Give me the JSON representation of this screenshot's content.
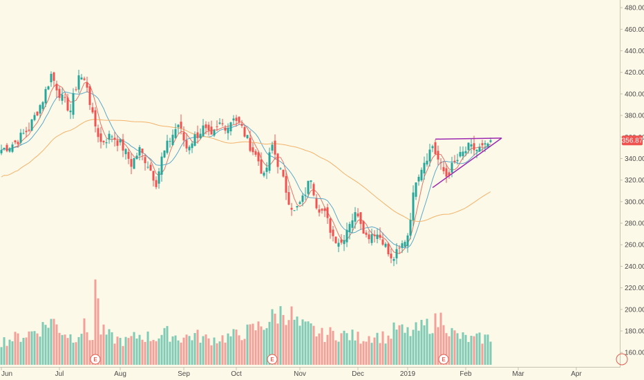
{
  "colors": {
    "background": "#fdf9e8",
    "up": "#26a69a",
    "down": "#ef5350",
    "up_volume": "#7fcbb6",
    "down_volume": "#f2a098",
    "ma_fast": "#e57368",
    "ma_mid": "#5aa8c8",
    "ma_slow": "#f2b26a",
    "trendline": "#9c27b0",
    "axis_line": "#c8c3b0",
    "earnings_marker": "#e25c4e"
  },
  "price_badge": {
    "value": "356.87"
  },
  "earnings_marker": {
    "label": "E"
  },
  "chart_data": {
    "type": "candlestick",
    "y_axis": {
      "ticks": [
        "160.00",
        "180.00",
        "200.00",
        "220.00",
        "240.00",
        "260.00",
        "280.00",
        "300.00",
        "320.00",
        "340.00",
        "360.00",
        "380.00",
        "400.00",
        "420.00",
        "440.00",
        "460.00",
        "480.00"
      ],
      "ylim": [
        155,
        482
      ]
    },
    "x_axis": {
      "labels": [
        {
          "label": "Jun",
          "index": 0
        },
        {
          "label": "Jul",
          "index": 21
        },
        {
          "label": "Aug",
          "index": 43
        },
        {
          "label": "Sep",
          "index": 66
        },
        {
          "label": "Oct",
          "index": 85
        },
        {
          "label": "Nov",
          "index": 108
        },
        {
          "label": "Dec",
          "index": 129
        },
        {
          "label": "2019",
          "index": 147
        },
        {
          "label": "Feb",
          "index": 168
        },
        {
          "label": "Mar",
          "index": 187
        },
        {
          "label": "Apr",
          "index": 208
        }
      ],
      "total_slots": 232
    },
    "price_anchors": [
      [
        0,
        348
      ],
      [
        5,
        355
      ],
      [
        10,
        368
      ],
      [
        15,
        395
      ],
      [
        18,
        418
      ],
      [
        22,
        395
      ],
      [
        25,
        385
      ],
      [
        28,
        418
      ],
      [
        31,
        408
      ],
      [
        33,
        378
      ],
      [
        36,
        355
      ],
      [
        40,
        362
      ],
      [
        44,
        350
      ],
      [
        47,
        335
      ],
      [
        50,
        348
      ],
      [
        53,
        335
      ],
      [
        56,
        318
      ],
      [
        58,
        340
      ],
      [
        61,
        358
      ],
      [
        64,
        372
      ],
      [
        67,
        350
      ],
      [
        70,
        360
      ],
      [
        73,
        368
      ],
      [
        76,
        358
      ],
      [
        79,
        372
      ],
      [
        82,
        370
      ],
      [
        84,
        380
      ],
      [
        87,
        368
      ],
      [
        90,
        352
      ],
      [
        93,
        338
      ],
      [
        95,
        322
      ],
      [
        98,
        352
      ],
      [
        101,
        328
      ],
      [
        104,
        302
      ],
      [
        106,
        290
      ],
      [
        109,
        302
      ],
      [
        112,
        323
      ],
      [
        114,
        298
      ],
      [
        117,
        288
      ],
      [
        120,
        268
      ],
      [
        123,
        262
      ],
      [
        126,
        282
      ],
      [
        129,
        290
      ],
      [
        132,
        268
      ],
      [
        135,
        272
      ],
      [
        138,
        265
      ],
      [
        141,
        245
      ],
      [
        144,
        255
      ],
      [
        147,
        270
      ],
      [
        150,
        322
      ],
      [
        153,
        338
      ],
      [
        156,
        352
      ],
      [
        159,
        332
      ],
      [
        161,
        324
      ],
      [
        163,
        332
      ],
      [
        166,
        342
      ],
      [
        169,
        350
      ],
      [
        172,
        348
      ],
      [
        175,
        350
      ],
      [
        177,
        356.87
      ]
    ],
    "volume_anchors": [
      [
        0,
        0.26
      ],
      [
        5,
        0.3
      ],
      [
        10,
        0.35
      ],
      [
        15,
        0.42
      ],
      [
        18,
        0.5
      ],
      [
        22,
        0.38
      ],
      [
        26,
        0.3
      ],
      [
        30,
        0.42
      ],
      [
        33,
        0.28
      ],
      [
        34,
        0.95
      ],
      [
        36,
        0.38
      ],
      [
        40,
        0.3
      ],
      [
        45,
        0.26
      ],
      [
        50,
        0.33
      ],
      [
        55,
        0.3
      ],
      [
        60,
        0.35
      ],
      [
        65,
        0.3
      ],
      [
        70,
        0.33
      ],
      [
        75,
        0.28
      ],
      [
        80,
        0.3
      ],
      [
        85,
        0.33
      ],
      [
        90,
        0.38
      ],
      [
        95,
        0.45
      ],
      [
        98,
        0.52
      ],
      [
        102,
        0.6
      ],
      [
        105,
        0.55
      ],
      [
        108,
        0.42
      ],
      [
        112,
        0.4
      ],
      [
        116,
        0.33
      ],
      [
        120,
        0.35
      ],
      [
        125,
        0.33
      ],
      [
        130,
        0.3
      ],
      [
        135,
        0.33
      ],
      [
        140,
        0.3
      ],
      [
        143,
        0.42
      ],
      [
        146,
        0.35
      ],
      [
        150,
        0.38
      ],
      [
        155,
        0.45
      ],
      [
        158,
        0.48
      ],
      [
        160,
        0.55
      ],
      [
        162,
        0.38
      ],
      [
        165,
        0.32
      ],
      [
        170,
        0.28
      ],
      [
        175,
        0.3
      ],
      [
        177,
        0.3
      ]
    ],
    "ma_periods": [
      5,
      10,
      50
    ],
    "trendlines": [
      {
        "from": [
          157,
          358
        ],
        "to": [
          181,
          359
        ]
      },
      {
        "from": [
          156,
          313
        ],
        "to": [
          181,
          359
        ]
      }
    ],
    "earnings_at": [
      34,
      98,
      160
    ],
    "last_price": 356.87
  }
}
